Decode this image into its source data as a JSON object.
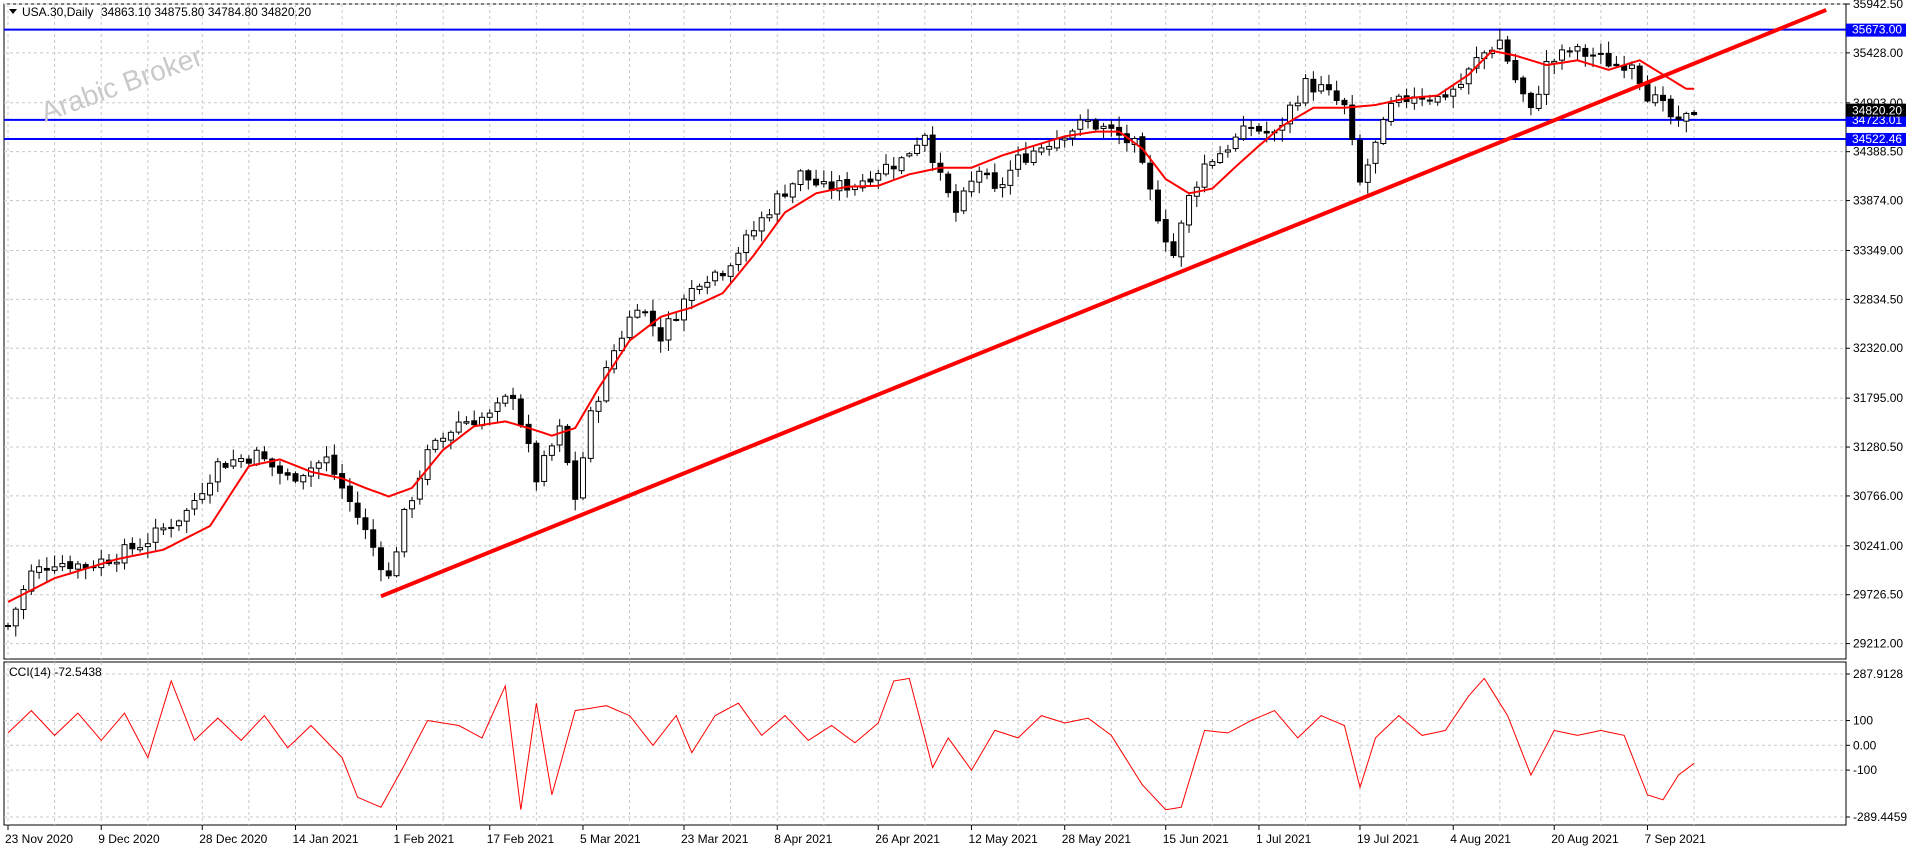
{
  "header": {
    "symbol_label": "USA.30,Daily",
    "ohlc": "34863.10 34875.80 34784.80 34820.20"
  },
  "watermark": "Arabic Broker",
  "indicator": {
    "label": "CCI(14) -72.5438"
  },
  "colors": {
    "candle_bull": "#ffffff",
    "candle_bear": "#000000",
    "moving_average": "#ff0000",
    "trendline": "#ff0000",
    "hline": "#0000ff",
    "hline_label_bg": "#0000ff",
    "price_label_bg": "#000000",
    "cci": "#ff0000"
  },
  "chart_data": {
    "type": "candlestick",
    "price_axis": {
      "ticks": [
        35942.5,
        35428.0,
        34903.0,
        34388.5,
        33874.0,
        33349.0,
        32834.5,
        32320.0,
        31795.0,
        31280.5,
        30766.0,
        30241.0,
        29726.5,
        29212.0
      ],
      "range": [
        29050,
        35942.5
      ],
      "tick_labels": [
        "35942.50",
        "35428.00",
        "34903.00",
        "34388.50",
        "33874.00",
        "33349.00",
        "32834.50",
        "32320.00",
        "31795.00",
        "31280.50",
        "30766.00",
        "30241.00",
        "29726.50",
        "29212.00"
      ]
    },
    "time_axis": {
      "labels": [
        "23 Nov 2020",
        "9 Dec 2020",
        "28 Dec 2020",
        "14 Jan 2021",
        "1 Feb 2021",
        "17 Feb 2021",
        "5 Mar 2021",
        "23 Mar 2021",
        "8 Apr 2021",
        "26 Apr 2021",
        "12 May 2021",
        "28 May 2021",
        "15 Jun 2021",
        "1 Jul 2021",
        "19 Jul 2021",
        "4 Aug 2021",
        "20 Aug 2021",
        "7 Sep 2021"
      ],
      "label_bar_index": [
        0,
        12,
        25,
        37,
        50,
        62,
        74,
        87,
        99,
        112,
        124,
        136,
        149,
        161,
        174,
        186,
        199,
        211
      ]
    },
    "horizontal_lines": [
      {
        "label": "35673.00",
        "value": 35673.0
      },
      {
        "label": "34723.01",
        "value": 34723.01
      },
      {
        "label": "34522.46",
        "value": 34522.46
      }
    ],
    "current_price": {
      "label": "34820.20",
      "value": 34820.2
    },
    "trendline": {
      "start": {
        "bar": 48,
        "price": 29710
      },
      "end": {
        "bar": 234,
        "price": 35880
      }
    },
    "close_anchors": [
      [
        0,
        29400
      ],
      [
        3,
        29950
      ],
      [
        6,
        30080
      ],
      [
        10,
        30030
      ],
      [
        14,
        30140
      ],
      [
        18,
        30300
      ],
      [
        23,
        30600
      ],
      [
        27,
        31100
      ],
      [
        32,
        31200
      ],
      [
        36,
        30950
      ],
      [
        41,
        31150
      ],
      [
        45,
        30550
      ],
      [
        49,
        29900
      ],
      [
        51,
        30550
      ],
      [
        54,
        31200
      ],
      [
        58,
        31550
      ],
      [
        62,
        31600
      ],
      [
        65,
        31850
      ],
      [
        68,
        30950
      ],
      [
        71,
        31450
      ],
      [
        73,
        30750
      ],
      [
        75,
        31600
      ],
      [
        78,
        32300
      ],
      [
        81,
        32800
      ],
      [
        84,
        32450
      ],
      [
        86,
        32700
      ],
      [
        89,
        33050
      ],
      [
        92,
        33150
      ],
      [
        95,
        33450
      ],
      [
        99,
        33900
      ],
      [
        102,
        34150
      ],
      [
        105,
        34000
      ],
      [
        109,
        34050
      ],
      [
        112,
        34200
      ],
      [
        115,
        34300
      ],
      [
        118,
        34600
      ],
      [
        120,
        34100
      ],
      [
        122,
        33750
      ],
      [
        125,
        34200
      ],
      [
        127,
        33950
      ],
      [
        130,
        34300
      ],
      [
        133,
        34450
      ],
      [
        136,
        34600
      ],
      [
        139,
        34700
      ],
      [
        142,
        34600
      ],
      [
        145,
        34450
      ],
      [
        147,
        33950
      ],
      [
        149,
        33500
      ],
      [
        150,
        33300
      ],
      [
        152,
        33900
      ],
      [
        154,
        34250
      ],
      [
        157,
        34450
      ],
      [
        160,
        34650
      ],
      [
        163,
        34550
      ],
      [
        165,
        34850
      ],
      [
        167,
        35100
      ],
      [
        169,
        35050
      ],
      [
        172,
        34850
      ],
      [
        174,
        34050
      ],
      [
        176,
        34450
      ],
      [
        178,
        34850
      ],
      [
        181,
        35000
      ],
      [
        184,
        34950
      ],
      [
        187,
        35100
      ],
      [
        189,
        35350
      ],
      [
        191,
        35500
      ],
      [
        192,
        35560
      ],
      [
        194,
        35150
      ],
      [
        196,
        34800
      ],
      [
        198,
        35300
      ],
      [
        201,
        35450
      ],
      [
        204,
        35400
      ],
      [
        207,
        35300
      ],
      [
        209,
        35350
      ],
      [
        211,
        35000
      ],
      [
        213,
        34850
      ],
      [
        215,
        34650
      ],
      [
        217,
        34820
      ]
    ],
    "moving_average": {
      "anchors": [
        [
          0,
          29650
        ],
        [
          6,
          29900
        ],
        [
          14,
          30100
        ],
        [
          20,
          30200
        ],
        [
          26,
          30450
        ],
        [
          31,
          31080
        ],
        [
          35,
          31150
        ],
        [
          39,
          31020
        ],
        [
          43,
          30950
        ],
        [
          46,
          30850
        ],
        [
          49,
          30760
        ],
        [
          52,
          30850
        ],
        [
          56,
          31250
        ],
        [
          60,
          31500
        ],
        [
          64,
          31550
        ],
        [
          67,
          31480
        ],
        [
          70,
          31400
        ],
        [
          73,
          31480
        ],
        [
          76,
          31900
        ],
        [
          80,
          32400
        ],
        [
          84,
          32650
        ],
        [
          88,
          32750
        ],
        [
          92,
          32900
        ],
        [
          96,
          33300
        ],
        [
          100,
          33750
        ],
        [
          104,
          33950
        ],
        [
          108,
          34020
        ],
        [
          112,
          34030
        ],
        [
          116,
          34150
        ],
        [
          120,
          34220
        ],
        [
          124,
          34220
        ],
        [
          128,
          34350
        ],
        [
          132,
          34450
        ],
        [
          136,
          34550
        ],
        [
          140,
          34600
        ],
        [
          143,
          34600
        ],
        [
          146,
          34420
        ],
        [
          149,
          34100
        ],
        [
          152,
          33950
        ],
        [
          155,
          34000
        ],
        [
          158,
          34230
        ],
        [
          161,
          34450
        ],
        [
          164,
          34660
        ],
        [
          168,
          34850
        ],
        [
          172,
          34850
        ],
        [
          176,
          34880
        ],
        [
          180,
          34950
        ],
        [
          184,
          34980
        ],
        [
          188,
          35200
        ],
        [
          191,
          35450
        ],
        [
          194,
          35400
        ],
        [
          198,
          35300
        ],
        [
          202,
          35350
        ],
        [
          206,
          35250
        ],
        [
          210,
          35350
        ],
        [
          213,
          35200
        ],
        [
          216,
          35050
        ]
      ]
    },
    "cci": {
      "name": "CCI(14)",
      "last_value": -72.5438,
      "axis_ticks": [
        287.9128,
        100,
        0.0,
        -100,
        -289.4459
      ],
      "axis_labels": [
        "287.9128",
        "100",
        "0.00",
        "-100",
        "-289.4459"
      ],
      "range": [
        -289.4459,
        287.9128
      ],
      "anchors": [
        [
          0,
          50
        ],
        [
          3,
          140
        ],
        [
          6,
          40
        ],
        [
          9,
          130
        ],
        [
          12,
          20
        ],
        [
          15,
          130
        ],
        [
          18,
          -50
        ],
        [
          21,
          260
        ],
        [
          24,
          20
        ],
        [
          27,
          110
        ],
        [
          30,
          20
        ],
        [
          33,
          120
        ],
        [
          36,
          -10
        ],
        [
          39,
          80
        ],
        [
          43,
          -50
        ],
        [
          45,
          -210
        ],
        [
          48,
          -250
        ],
        [
          51,
          -80
        ],
        [
          54,
          100
        ],
        [
          58,
          80
        ],
        [
          61,
          30
        ],
        [
          64,
          240
        ],
        [
          66,
          -260
        ],
        [
          68,
          170
        ],
        [
          70,
          -200
        ],
        [
          73,
          140
        ],
        [
          77,
          160
        ],
        [
          80,
          120
        ],
        [
          83,
          0
        ],
        [
          86,
          120
        ],
        [
          88,
          -30
        ],
        [
          91,
          120
        ],
        [
          94,
          170
        ],
        [
          97,
          40
        ],
        [
          100,
          120
        ],
        [
          103,
          20
        ],
        [
          106,
          80
        ],
        [
          109,
          10
        ],
        [
          112,
          90
        ],
        [
          114,
          260
        ],
        [
          116,
          270
        ],
        [
          119,
          -90
        ],
        [
          121,
          30
        ],
        [
          124,
          -100
        ],
        [
          127,
          60
        ],
        [
          130,
          30
        ],
        [
          133,
          120
        ],
        [
          136,
          90
        ],
        [
          139,
          110
        ],
        [
          142,
          40
        ],
        [
          146,
          -160
        ],
        [
          149,
          -260
        ],
        [
          151,
          -250
        ],
        [
          154,
          60
        ],
        [
          157,
          50
        ],
        [
          160,
          100
        ],
        [
          163,
          140
        ],
        [
          166,
          30
        ],
        [
          169,
          120
        ],
        [
          172,
          80
        ],
        [
          174,
          -170
        ],
        [
          176,
          30
        ],
        [
          179,
          120
        ],
        [
          182,
          40
        ],
        [
          185,
          60
        ],
        [
          188,
          200
        ],
        [
          190,
          270
        ],
        [
          193,
          120
        ],
        [
          196,
          -120
        ],
        [
          199,
          60
        ],
        [
          202,
          40
        ],
        [
          205,
          60
        ],
        [
          208,
          40
        ],
        [
          211,
          -200
        ],
        [
          213,
          -220
        ],
        [
          215,
          -120
        ],
        [
          217,
          -72.5438
        ]
      ]
    }
  }
}
